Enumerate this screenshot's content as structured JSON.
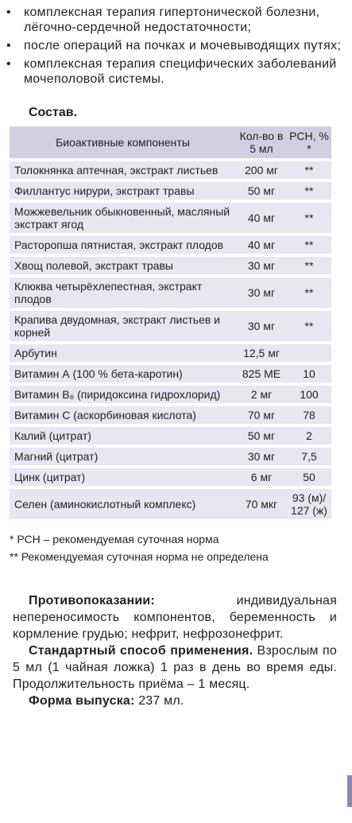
{
  "indications": [
    "комплексная терапия гипертонической болезни, лёгочно-сердечной недостаточности;",
    "после операций на почках и мочевыводящих путях;",
    "комплексная терапия специфических заболеваний мочеполовой системы."
  ],
  "composition": {
    "title": "Состав.",
    "headers": {
      "name": "Биоактивные компоненты",
      "qty": "Кол-во в 5 мл",
      "rsn": "РСН, % *"
    },
    "rows": [
      {
        "name": "Толокнянка аптечная, экстракт листьев",
        "qty": "200 мг",
        "rsn": "**"
      },
      {
        "name": "Филлантус нирури, экстракт травы",
        "qty": "50 мг",
        "rsn": "**"
      },
      {
        "name": "Можжевельник обыкновенный, масляный экстракт ягод",
        "qty": "40 мг",
        "rsn": "**"
      },
      {
        "name": "Расторопша пятнистая, экстракт плодов",
        "qty": "40 мг",
        "rsn": "**"
      },
      {
        "name": "Хвощ полевой, экстракт травы",
        "qty": "30 мг",
        "rsn": "**"
      },
      {
        "name": "Клюква четырёхлепестная, экстракт плодов",
        "qty": "30 мг",
        "rsn": "**"
      },
      {
        "name": "Крапива двудомная, экстракт листьев и корней",
        "qty": "30 мг",
        "rsn": "**"
      },
      {
        "name": "Арбутин",
        "qty": "12,5 мг",
        "rsn": ""
      },
      {
        "name": "Витамин А (100 % бета-каротин)",
        "qty": "825 МЕ",
        "rsn": "10"
      },
      {
        "name": "Витамин B₆ (пиридоксина гидрохлорид)",
        "qty": "2 мг",
        "rsn": "100"
      },
      {
        "name": "Витамин С (аскорбиновая кислота)",
        "qty": "70 мг",
        "rsn": "78"
      },
      {
        "name": "Калий (цитрат)",
        "qty": "50 мг",
        "rsn": "2"
      },
      {
        "name": "Магний (цитрат)",
        "qty": "30 мг",
        "rsn": "7,5"
      },
      {
        "name": "Цинк (цитрат)",
        "qty": "6 мг",
        "rsn": "50"
      },
      {
        "name": "Селен (аминокислотный комплекс)",
        "qty": "70 мкг",
        "rsn": "93 (м)/ 127 (ж)"
      }
    ]
  },
  "footnotes": [
    "* РСН – рекомендуемая суточная норма",
    "** Рекомендуемая суточная норма не определена"
  ],
  "contraindications": {
    "label": "Противопоказании:",
    "text": " индивидуальная непереносимость компонентов, беременность и кормление грудью; нефрит, нефрозонефрит."
  },
  "usage": {
    "label": "Стандартный способ применения.",
    "text": " Взрослым по 5 мл (1 чайная ложка) 1 раз в день во время еды. Продолжительность приёма – 1 месяц."
  },
  "release_form": {
    "label": "Форма выпуска:",
    "text": " 237 мл."
  }
}
